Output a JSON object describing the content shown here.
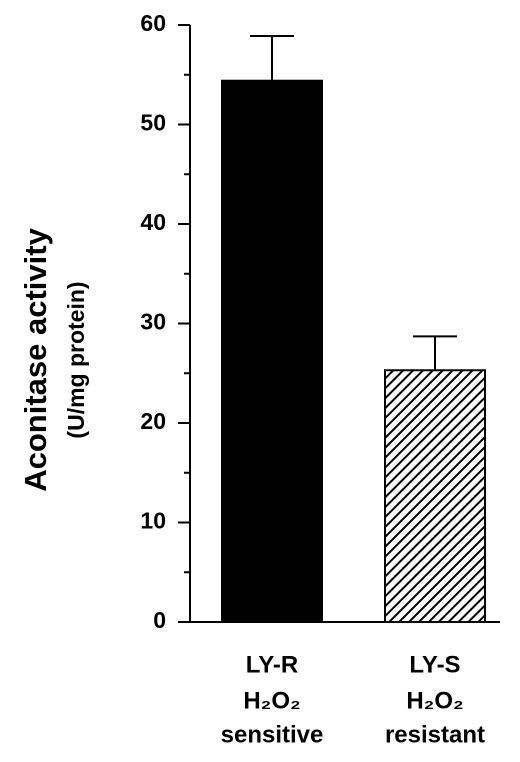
{
  "chart_data": {
    "type": "bar",
    "ylabel": "Aconitase activity",
    "ylabel_units": "(U/mg protein)",
    "categories": [
      "LY-R",
      "LY-S"
    ],
    "category_sublabels": [
      [
        "H₂O₂",
        "sensitive"
      ],
      [
        "H₂O₂",
        "resistant"
      ]
    ],
    "values": [
      54.4,
      25.3
    ],
    "errors": [
      4.5,
      3.4
    ],
    "fills": [
      "solid",
      "hatch"
    ],
    "color": "#000000",
    "ylim": [
      0,
      60
    ],
    "yticks": [
      0,
      10,
      20,
      30,
      40,
      50,
      60
    ],
    "minor_yticks": [
      5,
      15,
      25,
      35,
      45,
      55
    ],
    "grid": false
  }
}
